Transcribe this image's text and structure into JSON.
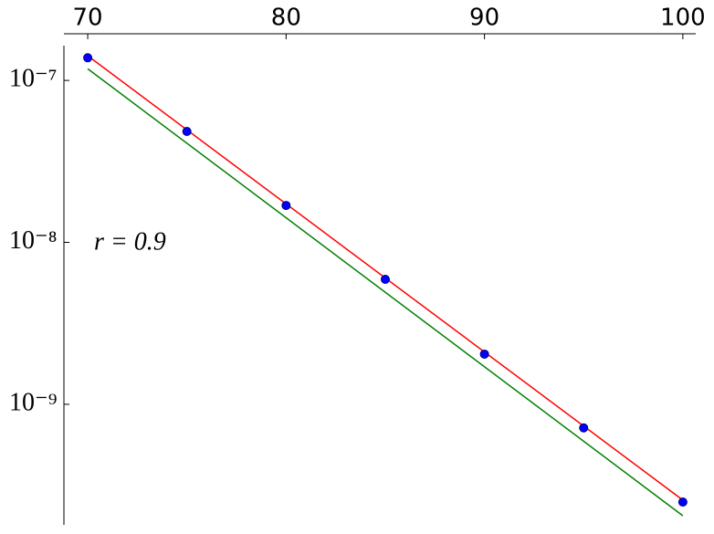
{
  "chart_data": {
    "type": "scatter",
    "annotation": "r = 0.9",
    "xlim": [
      68.8,
      100.65
    ],
    "xticks": [
      70,
      80,
      90,
      100
    ],
    "ylim": [
      1.64e-07,
      1.8e-10
    ],
    "ylog": true,
    "yticks": [
      {
        "value": 1e-07,
        "label": "10⁻⁷"
      },
      {
        "value": 1e-08,
        "label": "10⁻⁸"
      },
      {
        "value": 1e-09,
        "label": "10⁻⁹"
      }
    ],
    "series": [
      {
        "type": "scatter",
        "color": "#0000ff",
        "x": [
          70,
          75,
          80,
          85,
          90,
          95,
          100
        ],
        "values": [
          1.38e-07,
          4.84e-08,
          1.69e-08,
          5.91e-09,
          2.04e-09,
          7.15e-10,
          2.49e-10
        ]
      },
      {
        "type": "line",
        "color": "#ff0000",
        "x": [
          70,
          100
        ],
        "values": [
          1.42e-07,
          2.56e-10
        ]
      },
      {
        "type": "line",
        "color": "#008000",
        "x": [
          70,
          100
        ],
        "values": [
          1.18e-07,
          2.05e-10
        ]
      }
    ]
  }
}
